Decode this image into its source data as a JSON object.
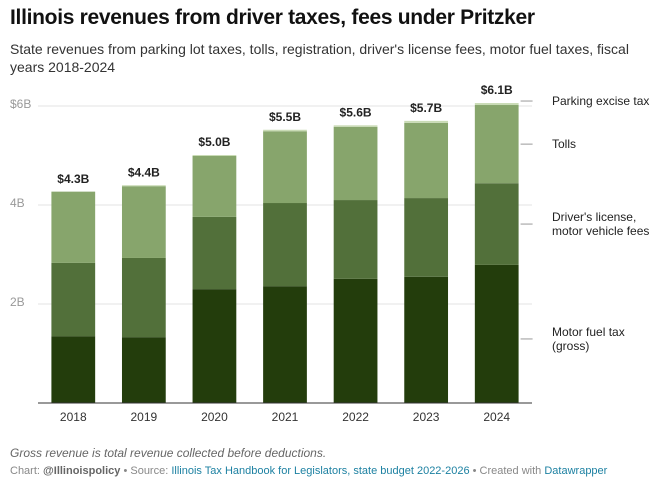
{
  "chart_data": {
    "type": "stacked_bar",
    "title": "Illinois revenues from driver taxes, fees under Pritzker",
    "subtitle": "State revenues from parking lot taxes, tolls, registration, driver's license fees, motor fuel taxes, fiscal years 2018-2024",
    "categories": [
      "2018",
      "2019",
      "2020",
      "2021",
      "2022",
      "2023",
      "2024"
    ],
    "series": [
      {
        "name": "Motor fuel tax (gross)",
        "color": "#233d0c",
        "values": [
          1.35,
          1.33,
          2.3,
          2.36,
          2.51,
          2.55,
          2.79
        ]
      },
      {
        "name": "Driver's license, motor vehicle fees",
        "color": "#52703a",
        "values": [
          1.48,
          1.6,
          1.46,
          1.68,
          1.59,
          1.59,
          1.65
        ]
      },
      {
        "name": "Tolls",
        "color": "#87a56c",
        "values": [
          1.44,
          1.45,
          1.23,
          1.45,
          1.48,
          1.52,
          1.58
        ]
      },
      {
        "name": "Parking excise tax",
        "color": "#c9dbb5",
        "values": [
          0,
          0.02,
          0.02,
          0.03,
          0.03,
          0.04,
          0.04
        ]
      }
    ],
    "totals": {
      "values": [
        4.3,
        4.4,
        5.0,
        5.5,
        5.6,
        5.7,
        6.1
      ],
      "value_labels": [
        "$4.3B",
        "$4.4B",
        "$5.0B",
        "$5.5B",
        "$5.6B",
        "$5.7B",
        "$6.1B"
      ]
    },
    "ylim": [
      0,
      6
    ],
    "yticks": [
      {
        "value": 2,
        "label": "2B"
      },
      {
        "value": 4,
        "label": "4B"
      },
      {
        "value": 6,
        "label": "$6B"
      }
    ],
    "grid": true,
    "note": "Gross revenue is total revenue collected before deductions.",
    "source": {
      "chart_prefix": "Chart:",
      "author": "@Illinoispolicy",
      "source_prefix": "• Source:",
      "source": "Illinois Tax Handbook for Legislators, state budget 2022-2026",
      "tool_prefix": "• Created with",
      "tool": "Datawrapper"
    }
  }
}
